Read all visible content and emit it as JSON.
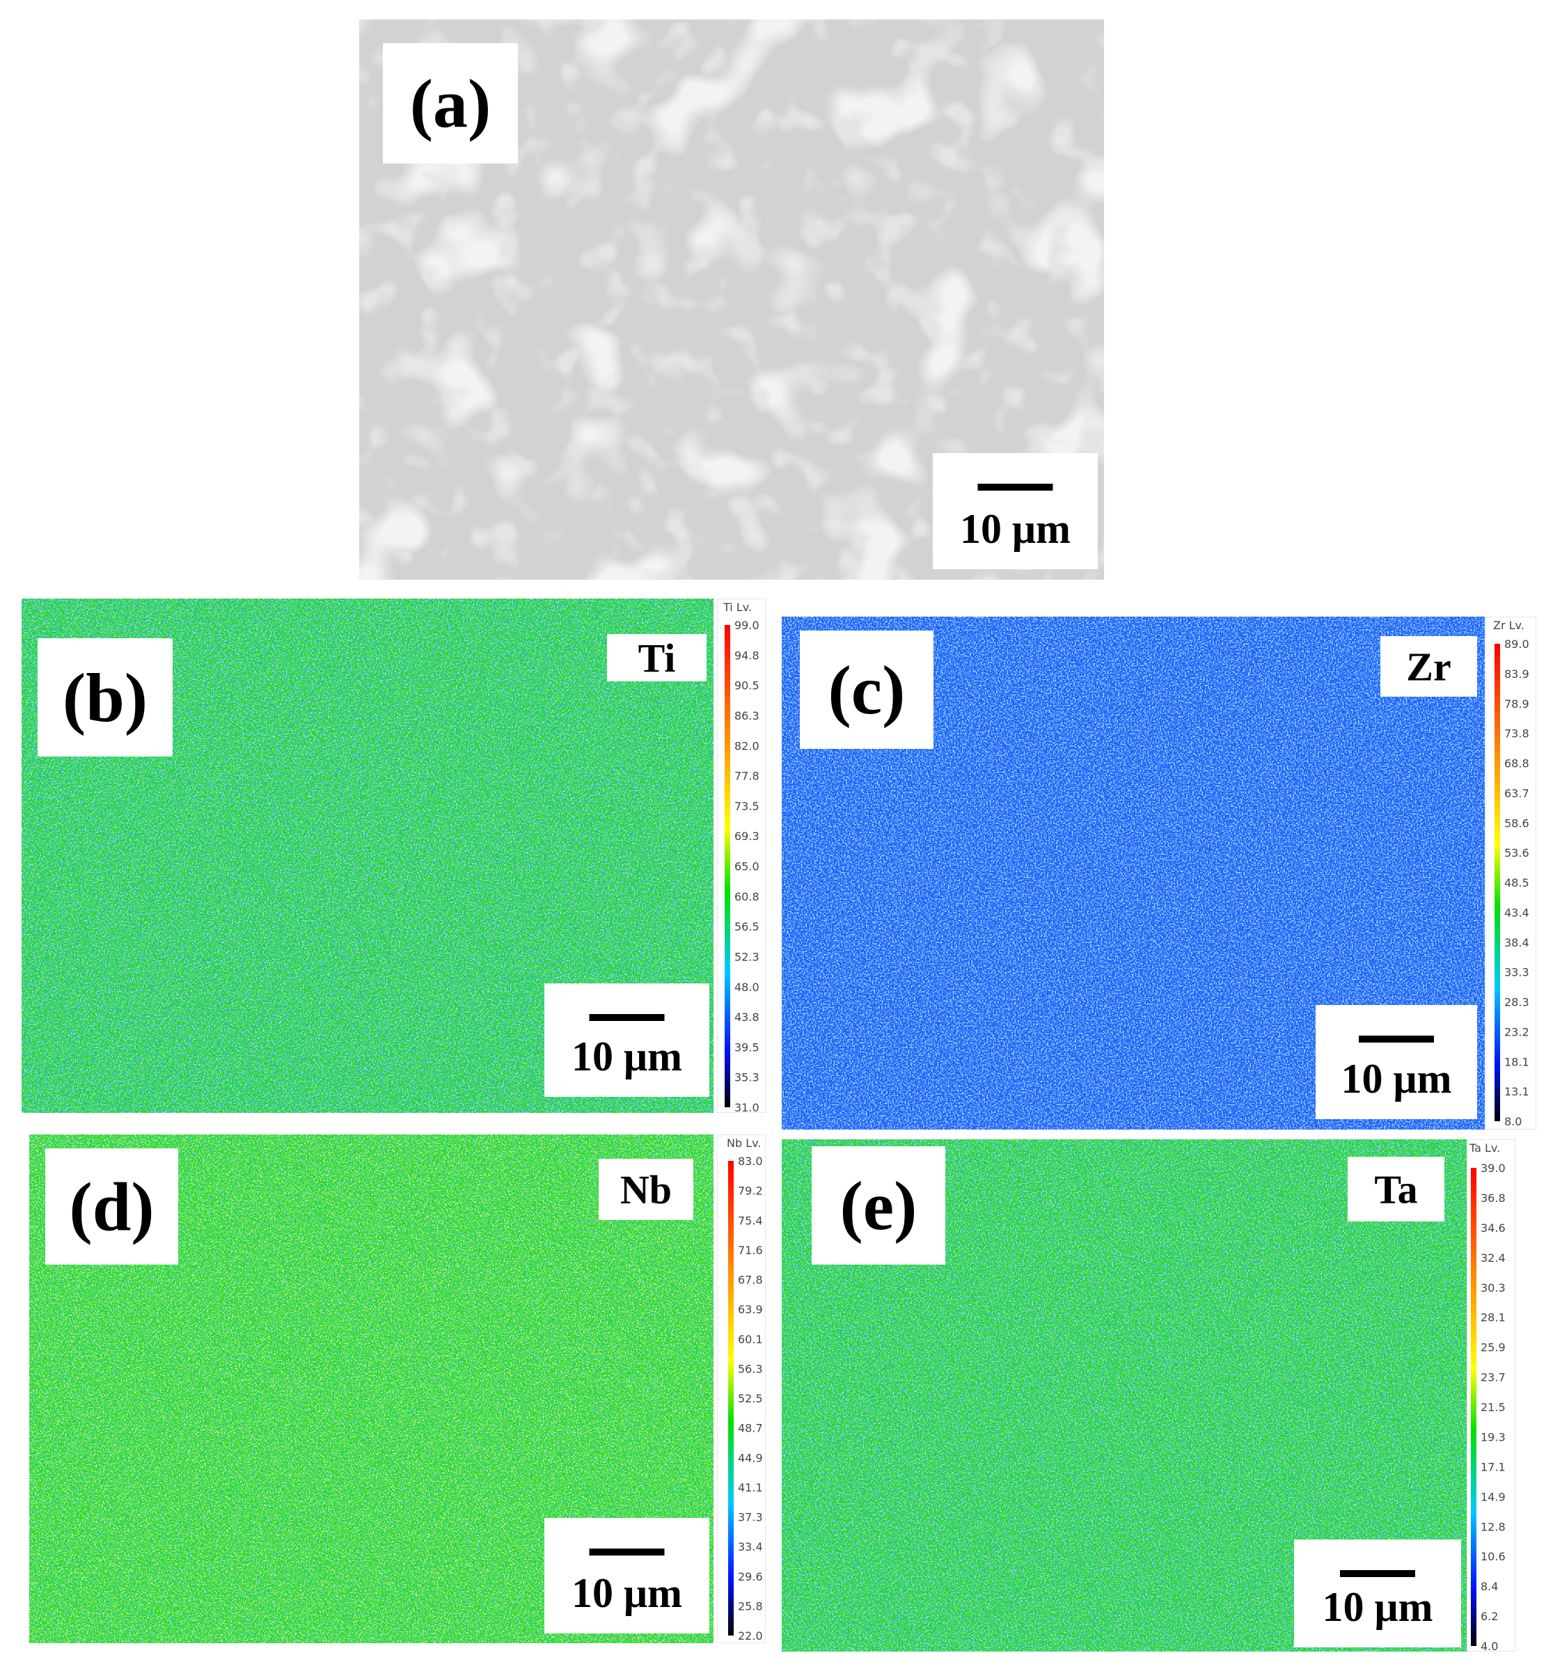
{
  "panels": [
    {
      "label": "(a)",
      "scale_bar": "10 μm"
    },
    {
      "label": "(b)",
      "element": "Ti",
      "scale_bar": "10 μm",
      "colorbar": {
        "title": "Ti Lv.",
        "ticks": [
          "99.0",
          "94.8",
          "90.5",
          "86.3",
          "82.0",
          "77.8",
          "73.5",
          "69.3",
          "65.0",
          "60.8",
          "56.5",
          "52.3",
          "48.0",
          "43.8",
          "39.5",
          "35.3",
          "31.0"
        ]
      }
    },
    {
      "label": "(c)",
      "element": "Zr",
      "scale_bar": "10 μm",
      "colorbar": {
        "title": "Zr Lv.",
        "ticks": [
          "89.0",
          "83.9",
          "78.9",
          "73.8",
          "68.8",
          "63.7",
          "58.6",
          "53.6",
          "48.5",
          "43.4",
          "38.4",
          "33.3",
          "28.3",
          "23.2",
          "18.1",
          "13.1",
          "8.0"
        ]
      }
    },
    {
      "label": "(d)",
      "element": "Nb",
      "scale_bar": "10 μm",
      "colorbar": {
        "title": "Nb Lv.",
        "ticks": [
          "83.0",
          "79.2",
          "75.4",
          "71.6",
          "67.8",
          "63.9",
          "60.1",
          "56.3",
          "52.5",
          "48.7",
          "44.9",
          "41.1",
          "37.3",
          "33.4",
          "29.6",
          "25.8",
          "22.0"
        ]
      }
    },
    {
      "label": "(e)",
      "element": "Ta",
      "scale_bar": "10 μm",
      "colorbar": {
        "title": "Ta Lv.",
        "ticks": [
          "39.0",
          "36.8",
          "34.6",
          "32.4",
          "30.3",
          "28.1",
          "25.9",
          "23.7",
          "21.5",
          "19.3",
          "17.1",
          "14.9",
          "12.8",
          "10.6",
          "8.4",
          "6.2",
          "4.0"
        ]
      }
    }
  ]
}
